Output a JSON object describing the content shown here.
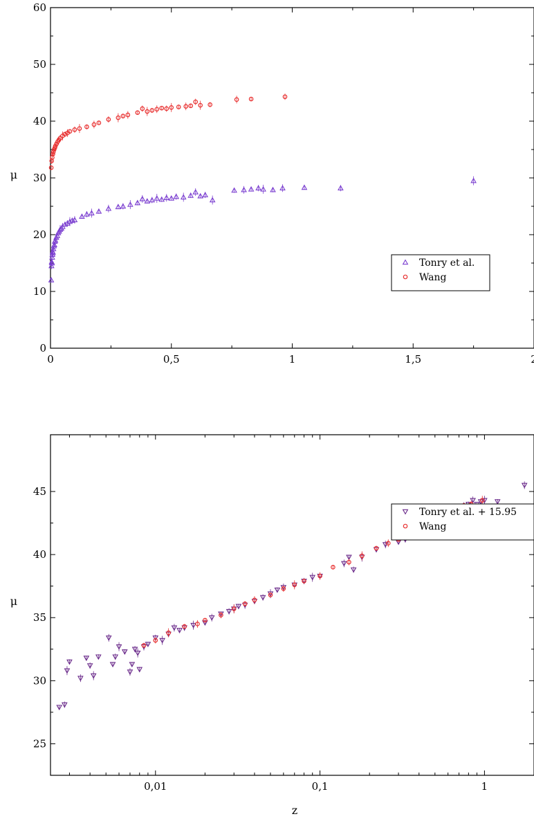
{
  "chart_data": [
    {
      "type": "scatter",
      "xscale": "linear",
      "xlim": [
        0,
        2
      ],
      "ylim": [
        0,
        60
      ],
      "xticks": [
        {
          "value": 0,
          "label": "0"
        },
        {
          "value": 0.5,
          "label": "0,5"
        },
        {
          "value": 1,
          "label": "1"
        },
        {
          "value": 1.5,
          "label": "1,5"
        },
        {
          "value": 2,
          "label": "2"
        }
      ],
      "yticks": [
        {
          "value": 0,
          "label": "0"
        },
        {
          "value": 10,
          "label": "10"
        },
        {
          "value": 20,
          "label": "20"
        },
        {
          "value": 30,
          "label": "30"
        },
        {
          "value": 40,
          "label": "40"
        },
        {
          "value": 50,
          "label": "50"
        },
        {
          "value": 60,
          "label": "60"
        }
      ],
      "xlabel": "",
      "ylabel": "μ",
      "legend_position": "lower-right",
      "series": [
        {
          "name": "Tonry et al.",
          "marker": "triangle-up",
          "color": "#7b3fd0",
          "points": [
            [
              0.003,
              12.0
            ],
            [
              0.004,
              14.5
            ],
            [
              0.005,
              15.2
            ],
            [
              0.006,
              15.0
            ],
            [
              0.007,
              16.0
            ],
            [
              0.008,
              16.5
            ],
            [
              0.009,
              17.0
            ],
            [
              0.01,
              16.8
            ],
            [
              0.012,
              17.5
            ],
            [
              0.014,
              18.0
            ],
            [
              0.016,
              18.2
            ],
            [
              0.018,
              18.8
            ],
            [
              0.02,
              19.0
            ],
            [
              0.024,
              19.5
            ],
            [
              0.028,
              19.8
            ],
            [
              0.032,
              20.3
            ],
            [
              0.036,
              20.6
            ],
            [
              0.04,
              20.9
            ],
            [
              0.045,
              21.1
            ],
            [
              0.05,
              21.4
            ],
            [
              0.06,
              21.8
            ],
            [
              0.07,
              22.0
            ],
            [
              0.08,
              22.3
            ],
            [
              0.09,
              22.5
            ],
            [
              0.1,
              22.6
            ],
            [
              0.13,
              23.2
            ],
            [
              0.15,
              23.6
            ],
            [
              0.17,
              23.8
            ],
            [
              0.2,
              24.1
            ],
            [
              0.24,
              24.6
            ],
            [
              0.28,
              24.9
            ],
            [
              0.3,
              25.0
            ],
            [
              0.33,
              25.3
            ],
            [
              0.36,
              25.6
            ],
            [
              0.38,
              26.3
            ],
            [
              0.4,
              25.9
            ],
            [
              0.42,
              26.1
            ],
            [
              0.44,
              26.4
            ],
            [
              0.46,
              26.2
            ],
            [
              0.48,
              26.5
            ],
            [
              0.5,
              26.4
            ],
            [
              0.52,
              26.7
            ],
            [
              0.55,
              26.6
            ],
            [
              0.58,
              26.9
            ],
            [
              0.6,
              27.5
            ],
            [
              0.62,
              26.8
            ],
            [
              0.64,
              27.0
            ],
            [
              0.67,
              26.1
            ],
            [
              0.76,
              27.8
            ],
            [
              0.8,
              27.9
            ],
            [
              0.83,
              28.0
            ],
            [
              0.86,
              28.2
            ],
            [
              0.88,
              28.0
            ],
            [
              0.92,
              27.9
            ],
            [
              0.96,
              28.2
            ],
            [
              1.05,
              28.3
            ],
            [
              1.2,
              28.2
            ],
            [
              1.75,
              29.5
            ]
          ]
        },
        {
          "name": "Wang",
          "marker": "circle",
          "color": "#e83030",
          "points": [
            [
              0.003,
              31.8
            ],
            [
              0.005,
              33.0
            ],
            [
              0.007,
              33.6
            ],
            [
              0.01,
              34.2
            ],
            [
              0.012,
              34.6
            ],
            [
              0.015,
              35.0
            ],
            [
              0.018,
              35.3
            ],
            [
              0.02,
              35.6
            ],
            [
              0.025,
              36.0
            ],
            [
              0.03,
              36.4
            ],
            [
              0.035,
              36.7
            ],
            [
              0.04,
              37.0
            ],
            [
              0.05,
              37.4
            ],
            [
              0.06,
              37.7
            ],
            [
              0.07,
              37.9
            ],
            [
              0.08,
              38.2
            ],
            [
              0.1,
              38.5
            ],
            [
              0.12,
              38.7
            ],
            [
              0.15,
              39.0
            ],
            [
              0.18,
              39.4
            ],
            [
              0.2,
              39.7
            ],
            [
              0.24,
              40.3
            ],
            [
              0.28,
              40.6
            ],
            [
              0.3,
              40.9
            ],
            [
              0.32,
              41.1
            ],
            [
              0.36,
              41.5
            ],
            [
              0.38,
              42.2
            ],
            [
              0.4,
              41.7
            ],
            [
              0.42,
              41.9
            ],
            [
              0.44,
              42.1
            ],
            [
              0.46,
              42.3
            ],
            [
              0.48,
              42.2
            ],
            [
              0.5,
              42.4
            ],
            [
              0.53,
              42.5
            ],
            [
              0.56,
              42.6
            ],
            [
              0.58,
              42.7
            ],
            [
              0.6,
              43.4
            ],
            [
              0.62,
              42.8
            ],
            [
              0.66,
              42.9
            ],
            [
              0.77,
              43.8
            ],
            [
              0.83,
              43.9
            ],
            [
              0.97,
              44.3
            ]
          ]
        }
      ]
    },
    {
      "type": "scatter",
      "xscale": "log",
      "xlim": [
        0.0023,
        2
      ],
      "ylim": [
        22.5,
        49.5
      ],
      "xticks": [
        {
          "value": 0.01,
          "label": "0,01"
        },
        {
          "value": 0.1,
          "label": "0,1"
        },
        {
          "value": 1,
          "label": "1"
        }
      ],
      "yticks": [
        {
          "value": 25,
          "label": "25"
        },
        {
          "value": 30,
          "label": "30"
        },
        {
          "value": 35,
          "label": "35"
        },
        {
          "value": 40,
          "label": "40"
        },
        {
          "value": 45,
          "label": "45"
        }
      ],
      "xlabel": "z",
      "ylabel": "μ",
      "legend_position": "lower-right",
      "series": [
        {
          "name": "Tonry et al. + 15.95",
          "marker": "triangle-down",
          "color": "#6a2a8a",
          "points": [
            [
              0.0026,
              27.9
            ],
            [
              0.0028,
              28.1
            ],
            [
              0.0029,
              30.8
            ],
            [
              0.003,
              31.5
            ],
            [
              0.0035,
              30.2
            ],
            [
              0.0038,
              31.8
            ],
            [
              0.004,
              31.2
            ],
            [
              0.0042,
              30.4
            ],
            [
              0.0045,
              31.9
            ],
            [
              0.0052,
              33.4
            ],
            [
              0.0055,
              31.3
            ],
            [
              0.0057,
              31.9
            ],
            [
              0.006,
              32.7
            ],
            [
              0.0065,
              32.3
            ],
            [
              0.007,
              30.7
            ],
            [
              0.0072,
              31.3
            ],
            [
              0.0075,
              32.5
            ],
            [
              0.0078,
              32.2
            ],
            [
              0.008,
              30.9
            ],
            [
              0.0085,
              32.7
            ],
            [
              0.009,
              32.9
            ],
            [
              0.01,
              33.4
            ],
            [
              0.011,
              33.2
            ],
            [
              0.012,
              33.7
            ],
            [
              0.013,
              34.2
            ],
            [
              0.014,
              34.0
            ],
            [
              0.015,
              34.2
            ],
            [
              0.017,
              34.4
            ],
            [
              0.02,
              34.6
            ],
            [
              0.022,
              35.0
            ],
            [
              0.025,
              35.3
            ],
            [
              0.028,
              35.5
            ],
            [
              0.03,
              35.7
            ],
            [
              0.032,
              35.9
            ],
            [
              0.035,
              36.0
            ],
            [
              0.04,
              36.3
            ],
            [
              0.045,
              36.6
            ],
            [
              0.05,
              36.9
            ],
            [
              0.055,
              37.2
            ],
            [
              0.06,
              37.4
            ],
            [
              0.07,
              37.6
            ],
            [
              0.08,
              37.9
            ],
            [
              0.09,
              38.2
            ],
            [
              0.1,
              38.3
            ],
            [
              0.14,
              39.3
            ],
            [
              0.15,
              39.8
            ],
            [
              0.16,
              38.8
            ],
            [
              0.18,
              39.8
            ],
            [
              0.22,
              40.4
            ],
            [
              0.25,
              40.8
            ],
            [
              0.3,
              41.0
            ],
            [
              0.33,
              41.2
            ],
            [
              0.36,
              41.6
            ],
            [
              0.4,
              42.0
            ],
            [
              0.42,
              41.7
            ],
            [
              0.45,
              42.3
            ],
            [
              0.48,
              42.0
            ],
            [
              0.5,
              42.5
            ],
            [
              0.55,
              42.6
            ],
            [
              0.6,
              42.8
            ],
            [
              0.63,
              42.4
            ],
            [
              0.66,
              42.0
            ],
            [
              0.75,
              43.8
            ],
            [
              0.8,
              44.0
            ],
            [
              0.85,
              44.3
            ],
            [
              0.9,
              44.0
            ],
            [
              0.95,
              44.2
            ],
            [
              1.0,
              44.3
            ],
            [
              1.2,
              44.2
            ],
            [
              1.75,
              45.5
            ]
          ]
        },
        {
          "name": "Wang",
          "marker": "circle",
          "color": "#e83030",
          "points": [
            [
              0.0085,
              32.8
            ],
            [
              0.01,
              33.2
            ],
            [
              0.012,
              33.8
            ],
            [
              0.015,
              34.3
            ],
            [
              0.018,
              34.5
            ],
            [
              0.02,
              34.8
            ],
            [
              0.025,
              35.2
            ],
            [
              0.03,
              35.7
            ],
            [
              0.035,
              36.1
            ],
            [
              0.04,
              36.4
            ],
            [
              0.05,
              36.8
            ],
            [
              0.06,
              37.3
            ],
            [
              0.07,
              37.6
            ],
            [
              0.08,
              37.9
            ],
            [
              0.1,
              38.3
            ],
            [
              0.12,
              39.0
            ],
            [
              0.15,
              39.4
            ],
            [
              0.18,
              39.9
            ],
            [
              0.22,
              40.5
            ],
            [
              0.26,
              40.9
            ],
            [
              0.3,
              41.2
            ],
            [
              0.35,
              41.6
            ],
            [
              0.38,
              42.9
            ],
            [
              0.4,
              42.1
            ],
            [
              0.44,
              42.3
            ],
            [
              0.48,
              42.6
            ],
            [
              0.52,
              42.7
            ],
            [
              0.56,
              42.9
            ],
            [
              0.6,
              43.0
            ],
            [
              0.65,
              43.1
            ],
            [
              0.75,
              43.9
            ],
            [
              0.83,
              44.0
            ],
            [
              0.97,
              44.3
            ]
          ]
        }
      ]
    }
  ]
}
